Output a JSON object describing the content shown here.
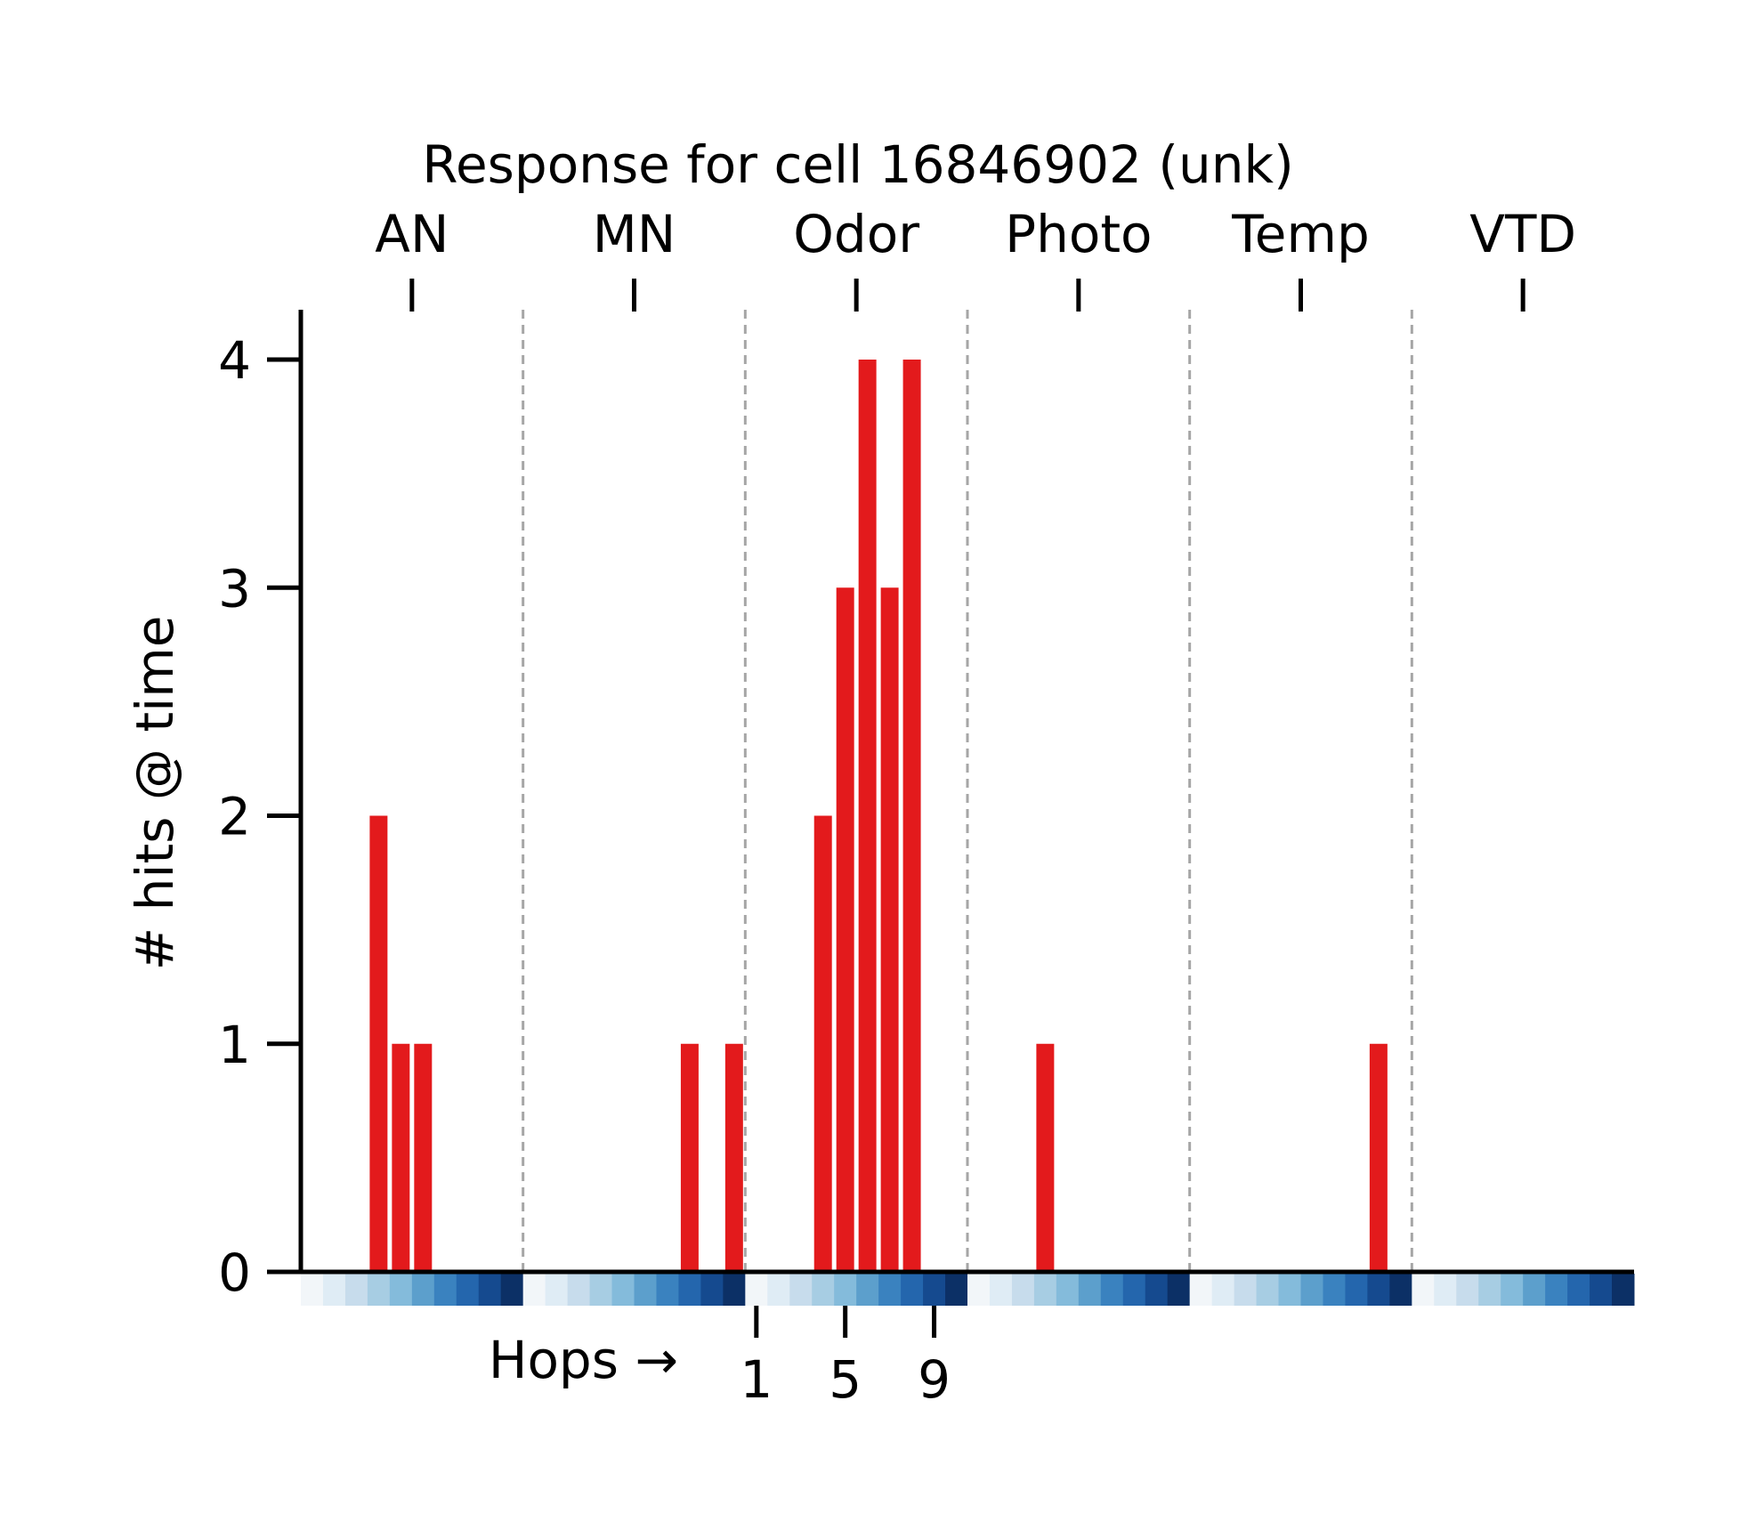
{
  "chart_data": {
    "type": "bar",
    "title": "Response for cell 16846902 (unk)",
    "ylabel": "# hits @ time",
    "ylim": [
      0,
      4.2
    ],
    "yticks": [
      "0",
      "1",
      "2",
      "3",
      "4"
    ],
    "categories": [
      "AN",
      "MN",
      "Odor",
      "Photo",
      "Temp",
      "VTD"
    ],
    "hops_per_category": 10,
    "hops_label": "Hops →",
    "hops_ticks": [
      "1",
      "5",
      "9"
    ],
    "bar_color": "#e31a1c",
    "grid": false,
    "category_separators": "dashed",
    "values": [
      [
        0,
        0,
        0,
        2,
        1,
        1,
        0,
        0,
        0,
        0
      ],
      [
        0,
        0,
        0,
        0,
        0,
        0,
        0,
        1,
        0,
        1
      ],
      [
        0,
        0,
        0,
        2,
        3,
        4,
        3,
        4,
        0,
        0
      ],
      [
        0,
        0,
        0,
        1,
        0,
        0,
        0,
        0,
        0,
        0
      ],
      [
        0,
        0,
        0,
        0,
        0,
        0,
        0,
        0,
        1,
        0
      ],
      [
        0,
        0,
        0,
        0,
        0,
        0,
        0,
        0,
        0,
        0
      ]
    ],
    "hop_colors": [
      "#f2f6f9",
      "#dfecf5",
      "#c7dcec",
      "#a7cde3",
      "#84bbdb",
      "#5c9fcc",
      "#3a82bf",
      "#2466ad",
      "#154a8f",
      "#0c3066"
    ]
  }
}
